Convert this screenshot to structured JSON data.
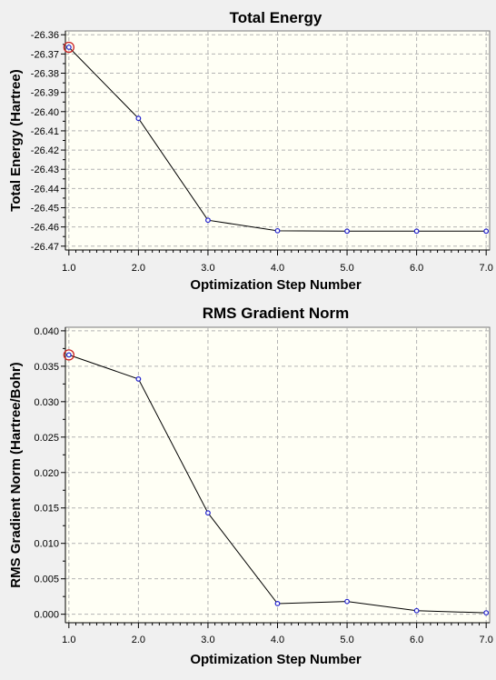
{
  "chart_data": [
    {
      "type": "line",
      "title": "Total Energy",
      "xlabel": "Optimization Step Number",
      "ylabel": "Total Energy (Hartree)",
      "xlim": [
        0.95,
        7.05
      ],
      "ylim": [
        -26.472,
        -26.358
      ],
      "x": [
        1,
        2,
        3,
        4,
        5,
        6,
        7
      ],
      "y": [
        -26.3665,
        -26.4035,
        -26.4565,
        -26.462,
        -26.4622,
        -26.4622,
        -26.4622
      ],
      "xticks": [
        1,
        2,
        3,
        4,
        5,
        6,
        7
      ],
      "xtick_labels": [
        "1.0",
        "2.0",
        "3.0",
        "4.0",
        "5.0",
        "6.0",
        "7.0"
      ],
      "yticks": [
        -26.36,
        -26.37,
        -26.38,
        -26.39,
        -26.4,
        -26.41,
        -26.42,
        -26.43,
        -26.44,
        -26.45,
        -26.46,
        -26.47
      ],
      "ytick_labels": [
        "-26.36",
        "-26.37",
        "-26.38",
        "-26.39",
        "-26.40",
        "-26.41",
        "-26.42",
        "-26.43",
        "-26.44",
        "-26.45",
        "-26.46",
        "-26.47"
      ],
      "grid": true,
      "highlighted_point_index": 0,
      "colors": {
        "line": "#000000",
        "marker": "#2222cc",
        "highlight": "#cc2222",
        "plot_bg": "#fffff5",
        "grid": "#b4b4b4"
      }
    },
    {
      "type": "line",
      "title": "RMS Gradient Norm",
      "xlabel": "Optimization Step Number",
      "ylabel": "RMS Gradient Norm (Hartree/Bohr)",
      "xlim": [
        0.95,
        7.05
      ],
      "ylim": [
        -0.0012,
        0.0405
      ],
      "x": [
        1,
        2,
        3,
        4,
        5,
        6,
        7
      ],
      "y": [
        0.0366,
        0.0332,
        0.0143,
        0.0015,
        0.0018,
        0.0005,
        0.0002
      ],
      "xticks": [
        1,
        2,
        3,
        4,
        5,
        6,
        7
      ],
      "xtick_labels": [
        "1.0",
        "2.0",
        "3.0",
        "4.0",
        "5.0",
        "6.0",
        "7.0"
      ],
      "yticks": [
        0.04,
        0.035,
        0.03,
        0.025,
        0.02,
        0.015,
        0.01,
        0.005,
        0.0
      ],
      "ytick_labels": [
        "0.040",
        "0.035",
        "0.030",
        "0.025",
        "0.020",
        "0.015",
        "0.010",
        "0.005",
        "0.000"
      ],
      "grid": true,
      "highlighted_point_index": 0,
      "colors": {
        "line": "#000000",
        "marker": "#2222cc",
        "highlight": "#cc2222",
        "plot_bg": "#fffff5",
        "grid": "#b4b4b4"
      }
    }
  ]
}
